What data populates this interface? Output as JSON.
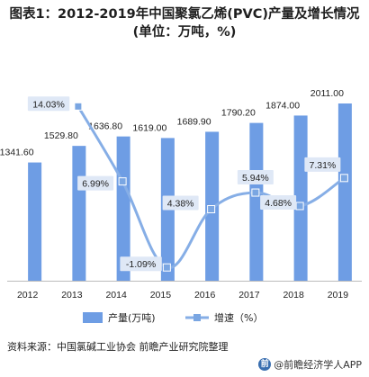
{
  "title": "图表1：2012-2019年中国聚氯乙烯(PVC)产量及增长情况(单位：万吨，%)",
  "source": "资料来源：中国氯碱工业协会 前瞻产业研究院整理",
  "watermark": "@前瞻经济学人APP",
  "colors": {
    "bar": "#6e9de4",
    "line": "#86aee6",
    "marker": "#7aa6e2",
    "label_bg": "#dfe8f6"
  },
  "chart_data": {
    "type": "bar",
    "categories": [
      "2012",
      "2013",
      "2014",
      "2015",
      "2016",
      "2017",
      "2018",
      "2019"
    ],
    "series": [
      {
        "name": "产量(万吨)",
        "type": "bar",
        "values": [
          1341.6,
          1529.8,
          1636.8,
          1619.0,
          1689.9,
          1790.2,
          1874.0,
          2011.0
        ],
        "labels": [
          "1341.60",
          "1529.80",
          "1636.80",
          "1619.00",
          "1689.90",
          "1790.20",
          "1874.00",
          "2011.00"
        ]
      },
      {
        "name": "增速（%）",
        "type": "line",
        "values": [
          null,
          14.03,
          6.99,
          -1.09,
          4.38,
          5.94,
          4.68,
          7.31
        ],
        "labels": [
          "",
          "14.03%",
          "6.99%",
          "-1.09%",
          "4.38%",
          "5.94%",
          "4.68%",
          "7.31%"
        ]
      }
    ],
    "ylim_bar": [
      0,
      2200
    ],
    "ylim_line": [
      -2,
      16
    ],
    "legend_position": "bottom"
  }
}
